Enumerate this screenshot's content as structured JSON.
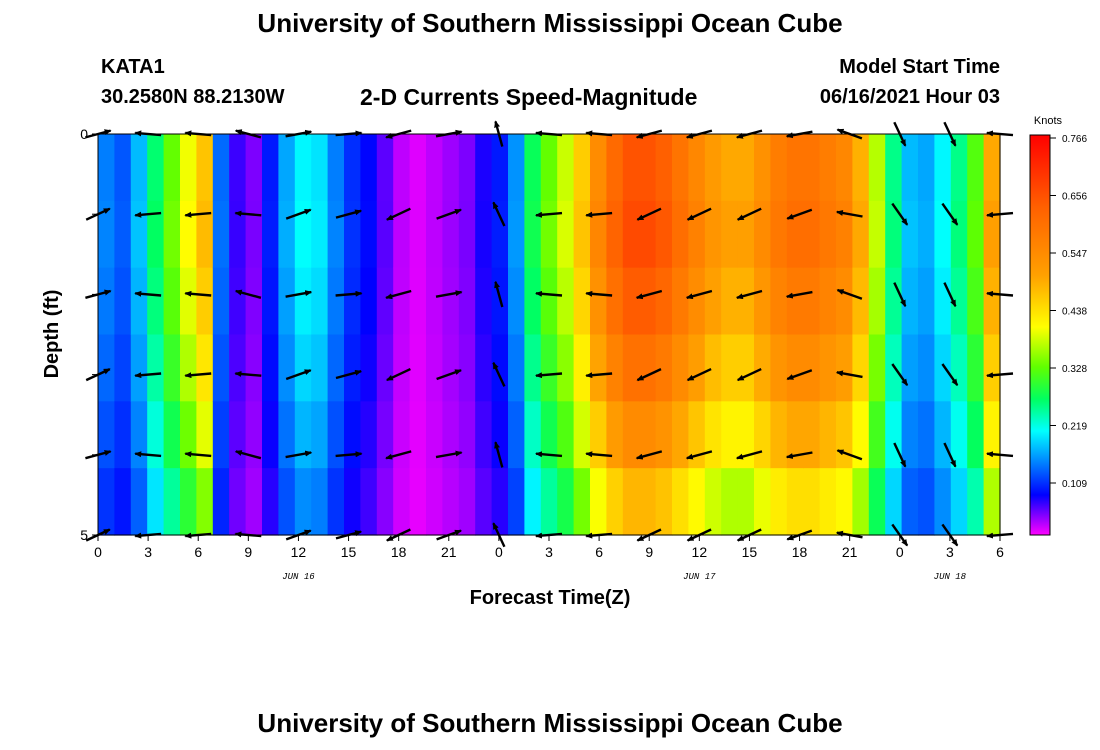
{
  "header": {
    "title": "University of Southern Mississippi Ocean Cube",
    "station_id": "KATA1",
    "station_coords": "30.2580N  88.2130W",
    "plot_title": "2-D Currents Speed-Magnitude",
    "model_start_label": "Model Start Time",
    "model_start_value": "06/16/2021 Hour 03"
  },
  "footer": {
    "title": "University of Southern Mississippi Ocean Cube"
  },
  "chart_data": {
    "type": "heatmap",
    "xlabel": "Forecast Time(Z)",
    "ylabel": "Depth (ft)",
    "ylim": [
      0,
      5
    ],
    "y_ticks": [
      "0",
      "5"
    ],
    "x_ticks": [
      "0",
      "3",
      "6",
      "9",
      "12",
      "15",
      "18",
      "21",
      "0",
      "3",
      "6",
      "9",
      "12",
      "15",
      "18",
      "21",
      "0",
      "3",
      "6"
    ],
    "date_labels": [
      {
        "text": "JUN 16",
        "at_hour": 12
      },
      {
        "text": "JUN 17",
        "at_hour": 36
      },
      {
        "text": "JUN 18",
        "at_hour": 51
      }
    ],
    "colorbar": {
      "unit": "Knots",
      "ticks": [
        "0.766",
        "0.656",
        "0.547",
        "0.438",
        "0.328",
        "0.219",
        "0.109"
      ],
      "range": [
        0,
        0.766
      ]
    },
    "hours": [
      0,
      1,
      2,
      3,
      4,
      5,
      6,
      7,
      8,
      9,
      10,
      11,
      12,
      13,
      14,
      15,
      16,
      17,
      18,
      19,
      20,
      21,
      22,
      23,
      24,
      25,
      26,
      27,
      28,
      29,
      30,
      31,
      32,
      33,
      34,
      35,
      36,
      37,
      38,
      39,
      40,
      41,
      42,
      43,
      44,
      45,
      46,
      47,
      48,
      49,
      50,
      51,
      52,
      53,
      54
    ],
    "speed_profile": [
      0.14,
      0.12,
      0.17,
      0.26,
      0.33,
      0.4,
      0.47,
      0.13,
      0.06,
      0.04,
      0.09,
      0.16,
      0.2,
      0.19,
      0.14,
      0.1,
      0.08,
      0.05,
      0.02,
      0.01,
      0.02,
      0.03,
      0.04,
      0.07,
      0.09,
      0.15,
      0.27,
      0.33,
      0.38,
      0.46,
      0.55,
      0.62,
      0.66,
      0.66,
      0.64,
      0.6,
      0.56,
      0.52,
      0.5,
      0.5,
      0.54,
      0.58,
      0.6,
      0.6,
      0.58,
      0.56,
      0.49,
      0.37,
      0.25,
      0.17,
      0.16,
      0.2,
      0.25,
      0.32,
      0.5
    ],
    "depth_factors": [
      0.98,
      1.0,
      0.96,
      0.9,
      0.82,
      0.72
    ],
    "vector_hours": [
      0,
      3,
      6,
      9,
      12,
      15,
      18,
      21,
      24,
      27,
      30,
      33,
      36,
      39,
      42,
      45,
      48,
      51,
      54
    ],
    "vector_depths": [
      0,
      1,
      2,
      3,
      4,
      5
    ],
    "vector_angles_deg": [
      20,
      180,
      180,
      170,
      15,
      10,
      200,
      15,
      110,
      180,
      180,
      200,
      200,
      200,
      195,
      165,
      300,
      300,
      180
    ]
  }
}
